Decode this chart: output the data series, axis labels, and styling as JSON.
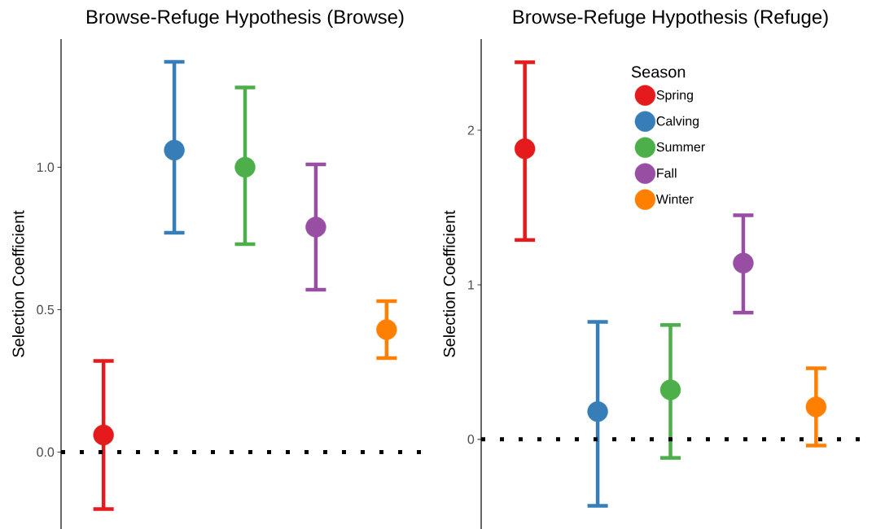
{
  "chart_data": [
    {
      "type": "scatter",
      "title": "Browse-Refuge Hypothesis (Browse)",
      "ylabel": "Selection Coefficient",
      "categories": [
        null,
        null,
        null,
        null,
        null
      ],
      "series": [
        {
          "color": "#e41a1c",
          "values": [
            0.06,
            null,
            null,
            null,
            null
          ],
          "errors": [
            [
              -0.2,
              0.32
            ],
            null,
            null,
            null,
            null
          ]
        },
        {
          "color": "#377eb8",
          "values": [
            null,
            1.06,
            null,
            null,
            null
          ],
          "errors": [
            null,
            [
              0.77,
              1.37
            ],
            null,
            null,
            null
          ]
        },
        {
          "color": "#4daf4a",
          "values": [
            null,
            null,
            1.0,
            null,
            null
          ],
          "errors": [
            null,
            null,
            [
              0.73,
              1.28
            ],
            null,
            null
          ]
        },
        {
          "color": "#984ea3",
          "values": [
            null,
            null,
            null,
            0.79,
            null
          ],
          "errors": [
            null,
            null,
            null,
            [
              0.57,
              1.01
            ],
            null
          ]
        },
        {
          "color": "#ff7f00",
          "values": [
            null,
            null,
            null,
            null,
            0.43
          ],
          "errors": [
            null,
            null,
            null,
            null,
            [
              0.33,
              0.53
            ]
          ]
        }
      ],
      "ylim": [
        -0.27,
        1.45
      ],
      "yticks": [
        {
          "value": 0,
          "label": "0.0"
        },
        {
          "value": 0.5,
          "label": "0.5"
        },
        {
          "value": 1,
          "label": "1.0"
        }
      ],
      "ref_lines": [
        {
          "axis": "y",
          "value": 0,
          "color": "#000000",
          "line_style": "dotted"
        }
      ],
      "marker": "circle",
      "tick_labels": "y"
    },
    {
      "type": "scatter",
      "title": "Browse-Refuge Hypothesis (Refuge)",
      "ylabel": "Selection Coefficient",
      "legend_title": "Season",
      "categories": [
        null,
        null,
        null,
        null,
        null
      ],
      "series": [
        {
          "name": "Spring",
          "color": "#e41a1c",
          "values": [
            1.88,
            null,
            null,
            null,
            null
          ],
          "errors": [
            [
              1.29,
              2.44
            ],
            null,
            null,
            null,
            null
          ]
        },
        {
          "name": "Calving",
          "color": "#377eb8",
          "values": [
            null,
            0.18,
            null,
            null,
            null
          ],
          "errors": [
            null,
            [
              -0.43,
              0.76
            ],
            null,
            null,
            null
          ]
        },
        {
          "name": "Summer",
          "color": "#4daf4a",
          "values": [
            null,
            null,
            0.32,
            null,
            null
          ],
          "errors": [
            null,
            null,
            [
              -0.12,
              0.74
            ],
            null,
            null
          ]
        },
        {
          "name": "Fall",
          "color": "#984ea3",
          "values": [
            null,
            null,
            null,
            1.14,
            null
          ],
          "errors": [
            null,
            null,
            null,
            [
              0.82,
              1.45
            ],
            null
          ]
        },
        {
          "name": "Winter",
          "color": "#ff7f00",
          "values": [
            null,
            null,
            null,
            null,
            0.21
          ],
          "errors": [
            null,
            null,
            null,
            null,
            [
              -0.04,
              0.46
            ]
          ]
        }
      ],
      "ylim": [
        -0.58,
        2.59
      ],
      "yticks": [
        0,
        1,
        2
      ],
      "ref_lines": [
        {
          "axis": "y",
          "value": 0,
          "color": "#000000",
          "line_style": "dotted"
        }
      ],
      "marker": "circle",
      "legend": "top",
      "tick_labels": "y"
    }
  ]
}
